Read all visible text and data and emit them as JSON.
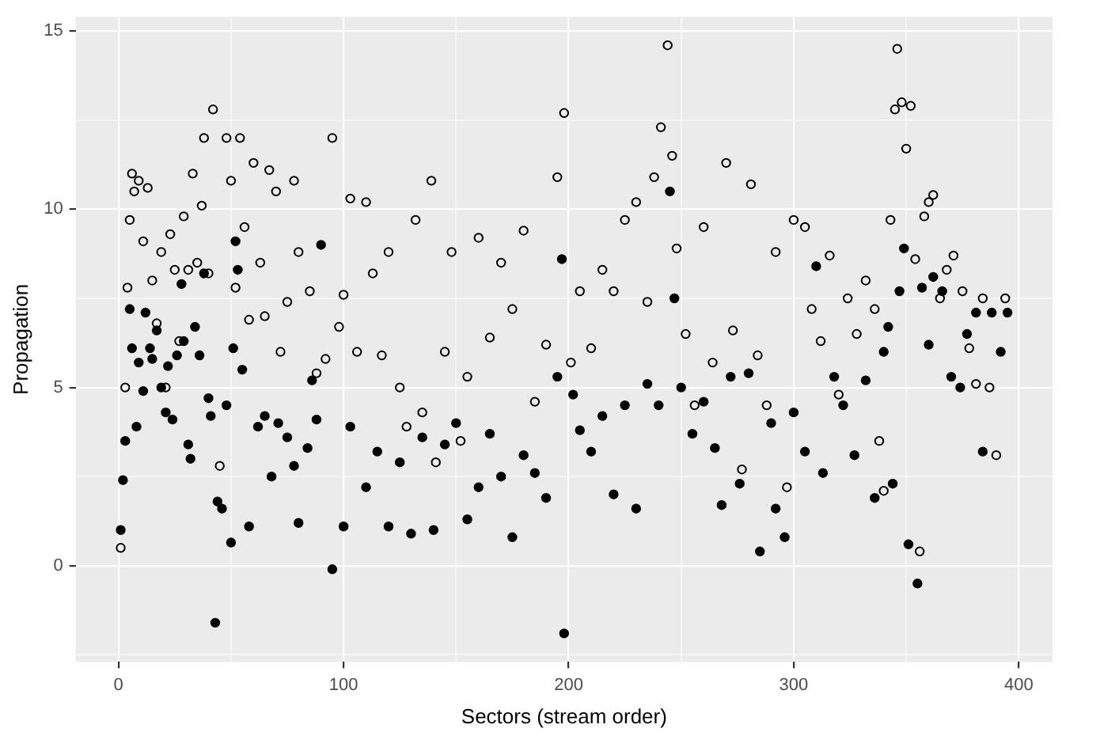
{
  "chart_data": {
    "type": "scatter",
    "xlabel": "Sectors (stream order)",
    "ylabel": "Propagation",
    "xlim": [
      -19,
      415
    ],
    "ylim": [
      -2.7,
      15.4
    ],
    "xticks": [
      0,
      {
        "value": 50,
        "label": null
      },
      100,
      {
        "value": 150,
        "label": null
      },
      200,
      {
        "value": 250,
        "label": null
      },
      300,
      {
        "value": 350,
        "label": null
      },
      400
    ],
    "yticks": [
      {
        "value": -2.5,
        "label": null
      },
      0,
      {
        "value": 2.5,
        "label": null
      },
      5,
      {
        "value": 7.5,
        "label": null
      },
      10,
      {
        "value": 12.5,
        "label": null
      },
      15
    ],
    "grid": true,
    "legend": false,
    "marker": "circle",
    "series": [
      {
        "color": "#000000",
        "x": [
          1,
          2,
          3,
          5,
          6,
          8,
          9,
          11,
          12,
          14,
          15,
          17,
          19,
          21,
          22,
          24,
          26,
          28,
          29,
          31,
          32,
          34,
          36,
          38,
          40,
          41,
          43,
          44,
          46,
          48,
          50,
          51,
          52,
          53,
          55,
          58,
          62,
          65,
          68,
          71,
          75,
          78,
          80,
          84,
          86,
          88,
          90,
          95,
          100,
          103,
          110,
          115,
          120,
          125,
          130,
          135,
          140,
          145,
          150,
          155,
          160,
          165,
          170,
          175,
          180,
          185,
          190,
          195,
          197,
          198,
          202,
          205,
          210,
          215,
          220,
          225,
          230,
          235,
          240,
          245,
          247,
          250,
          255,
          260,
          265,
          268,
          272,
          276,
          280,
          285,
          290,
          292,
          296,
          300,
          305,
          310,
          313,
          318,
          322,
          327,
          332,
          336,
          340,
          342,
          344,
          347,
          349,
          351,
          355,
          357,
          360,
          362,
          366,
          370,
          374,
          377,
          381,
          384,
          388,
          392,
          395
        ],
        "values": [
          1.0,
          2.4,
          3.5,
          7.2,
          6.1,
          3.9,
          5.7,
          4.9,
          7.1,
          6.1,
          5.8,
          6.6,
          5.0,
          4.3,
          5.6,
          4.1,
          5.9,
          7.9,
          6.3,
          3.4,
          3.0,
          6.7,
          5.9,
          8.2,
          4.7,
          4.2,
          -1.6,
          1.8,
          1.6,
          4.5,
          0.65,
          6.1,
          9.1,
          8.3,
          5.5,
          1.1,
          3.9,
          4.2,
          2.5,
          4.0,
          3.6,
          2.8,
          1.2,
          3.3,
          5.2,
          4.1,
          9.0,
          -0.1,
          1.1,
          3.9,
          2.2,
          3.2,
          1.1,
          2.9,
          0.9,
          3.6,
          1.0,
          3.4,
          4.0,
          1.3,
          2.2,
          3.7,
          2.5,
          0.8,
          3.1,
          2.6,
          1.9,
          5.3,
          8.6,
          -1.9,
          4.8,
          3.8,
          3.2,
          4.2,
          2.0,
          4.5,
          1.6,
          5.1,
          4.5,
          10.5,
          7.5,
          5.0,
          3.7,
          4.6,
          3.3,
          1.7,
          5.3,
          2.3,
          5.4,
          0.4,
          4.0,
          1.6,
          0.8,
          4.3,
          3.2,
          8.4,
          2.6,
          5.3,
          4.5,
          3.1,
          5.2,
          1.9,
          6.0,
          6.7,
          2.3,
          7.7,
          8.9,
          0.6,
          -0.5,
          7.8,
          6.2,
          8.1,
          7.7,
          5.3,
          5.0,
          6.5,
          7.1,
          3.2,
          7.1,
          6.0,
          7.1
        ]
      },
      {
        "color": "#000000",
        "x": [
          1,
          3,
          4,
          5,
          6,
          7,
          9,
          11,
          13,
          15,
          17,
          19,
          21,
          23,
          25,
          27,
          29,
          31,
          33,
          35,
          37,
          38,
          40,
          42,
          45,
          48,
          50,
          52,
          54,
          56,
          58,
          60,
          63,
          65,
          67,
          70,
          72,
          75,
          78,
          80,
          85,
          88,
          92,
          95,
          98,
          100,
          103,
          106,
          110,
          113,
          117,
          120,
          125,
          128,
          132,
          135,
          139,
          141,
          145,
          148,
          152,
          155,
          160,
          165,
          170,
          175,
          180,
          185,
          190,
          195,
          198,
          201,
          205,
          210,
          215,
          220,
          225,
          230,
          235,
          238,
          241,
          244,
          246,
          248,
          252,
          256,
          260,
          264,
          270,
          273,
          277,
          281,
          284,
          288,
          292,
          297,
          300,
          305,
          308,
          312,
          316,
          320,
          324,
          328,
          332,
          336,
          338,
          340,
          343,
          345,
          346,
          348,
          350,
          352,
          354,
          356,
          358,
          360,
          362,
          365,
          368,
          371,
          375,
          378,
          381,
          384,
          387,
          390,
          394
        ],
        "values": [
          0.5,
          5.0,
          7.8,
          9.7,
          11.0,
          10.5,
          10.8,
          9.1,
          10.6,
          8.0,
          6.8,
          8.8,
          5.0,
          9.3,
          8.3,
          6.3,
          9.8,
          8.3,
          11.0,
          8.5,
          10.1,
          12.0,
          8.2,
          12.8,
          2.8,
          12.0,
          10.8,
          7.8,
          12.0,
          9.5,
          6.9,
          11.3,
          8.5,
          7.0,
          11.1,
          10.5,
          6.0,
          7.4,
          10.8,
          8.8,
          7.7,
          5.4,
          5.8,
          12.0,
          6.7,
          7.6,
          10.3,
          6.0,
          10.2,
          8.2,
          5.9,
          8.8,
          5.0,
          3.9,
          9.7,
          4.3,
          10.8,
          2.9,
          6.0,
          8.8,
          3.5,
          5.3,
          9.2,
          6.4,
          8.5,
          7.2,
          9.4,
          4.6,
          6.2,
          10.9,
          12.7,
          5.7,
          7.7,
          6.1,
          8.3,
          7.7,
          9.7,
          10.2,
          7.4,
          10.9,
          12.3,
          14.6,
          11.5,
          8.9,
          6.5,
          4.5,
          9.5,
          5.7,
          11.3,
          6.6,
          2.7,
          10.7,
          5.9,
          4.5,
          8.8,
          2.2,
          9.7,
          9.5,
          7.2,
          6.3,
          8.7,
          4.8,
          7.5,
          6.5,
          8.0,
          7.2,
          3.5,
          2.1,
          9.7,
          12.8,
          14.5,
          13.0,
          11.7,
          12.9,
          8.6,
          0.4,
          9.8,
          10.2,
          10.4,
          7.5,
          8.3,
          8.7,
          7.7,
          6.1,
          5.1,
          7.5,
          5.0,
          3.1,
          7.5
        ]
      }
    ]
  }
}
